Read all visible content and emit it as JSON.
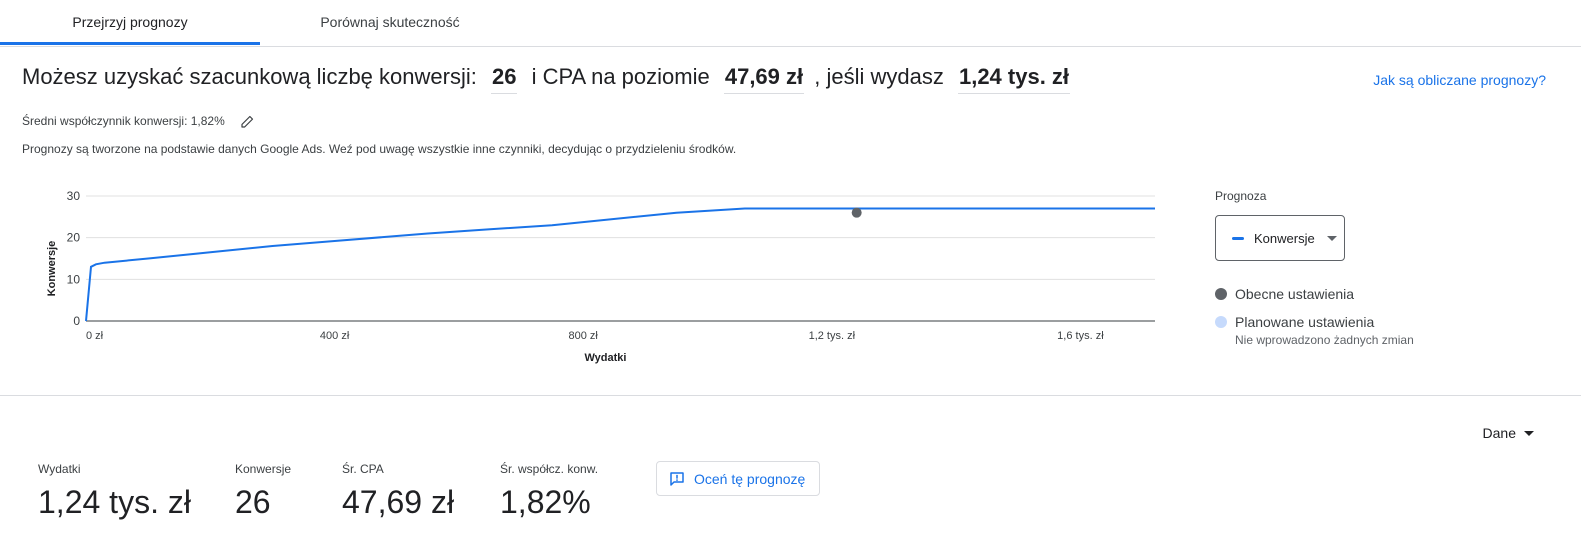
{
  "tabs": [
    {
      "label": "Przejrzyj prognozy",
      "active": true
    },
    {
      "label": "Porównaj skuteczność",
      "active": false
    }
  ],
  "headline": {
    "prefix": "Możesz uzyskać szacunkową liczbę konwersji:",
    "conversions": "26",
    "mid": "i CPA na poziomie",
    "cpa": "47,69 zł",
    "suffix": ", jeśli wydasz",
    "spend": "1,24 tys. zł"
  },
  "help_link": "Jak są obliczane prognozy?",
  "conversion_rate_text": "Średni współczynnik konwersji: 1,82%",
  "disclaimer": "Prognozy są tworzone na podstawie danych Google Ads. Weź pod uwagę wszystkie inne czynniki, decydując o przydzieleniu środków.",
  "chart_data": {
    "type": "line",
    "title": "",
    "xlabel": "Wydatki",
    "ylabel": "Konwersje",
    "xlim": [
      0,
      1720
    ],
    "ylim": [
      0,
      30
    ],
    "x_ticks": [
      {
        "value": 0,
        "label": "0 zł"
      },
      {
        "value": 400,
        "label": "400 zł"
      },
      {
        "value": 800,
        "label": "800 zł"
      },
      {
        "value": 1200,
        "label": "1,2 tys. zł"
      },
      {
        "value": 1600,
        "label": "1,6 tys. zł"
      }
    ],
    "y_ticks": [
      {
        "value": 0,
        "label": "0"
      },
      {
        "value": 10,
        "label": "10"
      },
      {
        "value": 20,
        "label": "20"
      },
      {
        "value": 30,
        "label": "30"
      }
    ],
    "grid": true,
    "series": [
      {
        "color": "#1a73e8",
        "x": [
          0,
          8,
          16,
          30,
          100,
          200,
          300,
          400,
          550,
          650,
          750,
          950,
          1060,
          1400,
          1720
        ],
        "y": [
          0,
          13,
          13.6,
          14,
          15,
          16.5,
          18,
          19.2,
          21,
          22,
          23,
          26,
          27,
          27,
          27
        ]
      }
    ],
    "current_point": {
      "x": 1240,
      "y": 26,
      "color": "#5f6368"
    }
  },
  "legend": {
    "title": "Prognoza",
    "dropdown_label": "Konwersje",
    "current_label": "Obecne ustawienia",
    "current_color": "#5f6368",
    "planned_label": "Planowane ustawienia",
    "planned_color": "#c6dafc",
    "planned_sub": "Nie wprowadzono żadnych zmian"
  },
  "dane_label": "Dane",
  "metrics": [
    {
      "label": "Wydatki",
      "value": "1,24 tys. zł"
    },
    {
      "label": "Konwersje",
      "value": "26"
    },
    {
      "label": "Śr. CPA",
      "value": "47,69 zł"
    },
    {
      "label": "Śr. współcz. konw.",
      "value": "1,82%"
    }
  ],
  "rate_button": "Oceń tę prognozę"
}
